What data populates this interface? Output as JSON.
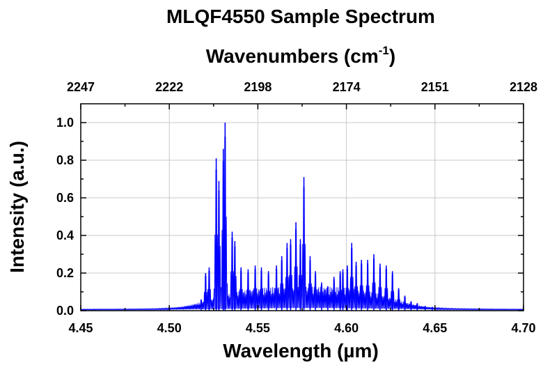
{
  "chart_data": {
    "type": "line",
    "title": "MLQF4550 Sample Spectrum",
    "xlabel": "Wavelength (µm)",
    "ylabel": "Intensity (a.u.)",
    "x2label": "Wavenumbers (cm",
    "x2label_sup": "-1",
    "x2label_end": ")",
    "xlim": [
      4.45,
      4.7
    ],
    "ylim": [
      0.0,
      1.1
    ],
    "x_ticks": [
      "4.45",
      "4.50",
      "4.55",
      "4.60",
      "4.65",
      "4.70"
    ],
    "y_ticks": [
      "0.0",
      "0.2",
      "0.4",
      "0.6",
      "0.8",
      "1.0"
    ],
    "x2_ticks": [
      "2247",
      "2222",
      "2198",
      "2174",
      "2151",
      "2128"
    ],
    "grid": true,
    "series": [
      {
        "color": "#0000ff",
        "baseline": 0.008,
        "peaks": [
          {
            "x": 4.518,
            "y": 0.06
          },
          {
            "x": 4.5205,
            "y": 0.2
          },
          {
            "x": 4.5225,
            "y": 0.23
          },
          {
            "x": 4.5265,
            "y": 0.81
          },
          {
            "x": 4.528,
            "y": 0.69
          },
          {
            "x": 4.5305,
            "y": 0.86
          },
          {
            "x": 4.5315,
            "y": 1.0
          },
          {
            "x": 4.5355,
            "y": 0.42
          },
          {
            "x": 4.537,
            "y": 0.37
          },
          {
            "x": 4.5405,
            "y": 0.23
          },
          {
            "x": 4.5445,
            "y": 0.22
          },
          {
            "x": 4.5485,
            "y": 0.24
          },
          {
            "x": 4.552,
            "y": 0.23
          },
          {
            "x": 4.556,
            "y": 0.21
          },
          {
            "x": 4.5605,
            "y": 0.24
          },
          {
            "x": 4.5635,
            "y": 0.29
          },
          {
            "x": 4.5665,
            "y": 0.36
          },
          {
            "x": 4.5685,
            "y": 0.38
          },
          {
            "x": 4.5715,
            "y": 0.47
          },
          {
            "x": 4.574,
            "y": 0.38
          },
          {
            "x": 4.576,
            "y": 0.71
          },
          {
            "x": 4.5795,
            "y": 0.29
          },
          {
            "x": 4.5825,
            "y": 0.21
          },
          {
            "x": 4.586,
            "y": 0.15
          },
          {
            "x": 4.5895,
            "y": 0.13
          },
          {
            "x": 4.593,
            "y": 0.18
          },
          {
            "x": 4.5965,
            "y": 0.21
          },
          {
            "x": 4.598,
            "y": 0.22
          },
          {
            "x": 4.6005,
            "y": 0.24
          },
          {
            "x": 4.603,
            "y": 0.36
          },
          {
            "x": 4.6055,
            "y": 0.26
          },
          {
            "x": 4.6085,
            "y": 0.27
          },
          {
            "x": 4.612,
            "y": 0.27
          },
          {
            "x": 4.6155,
            "y": 0.3
          },
          {
            "x": 4.619,
            "y": 0.25
          },
          {
            "x": 4.6225,
            "y": 0.24
          },
          {
            "x": 4.626,
            "y": 0.21
          },
          {
            "x": 4.6295,
            "y": 0.12
          },
          {
            "x": 4.633,
            "y": 0.08
          },
          {
            "x": 4.6365,
            "y": 0.05
          },
          {
            "x": 4.64,
            "y": 0.04
          },
          {
            "x": 4.6445,
            "y": 0.025
          },
          {
            "x": 4.6485,
            "y": 0.02
          }
        ]
      }
    ]
  }
}
